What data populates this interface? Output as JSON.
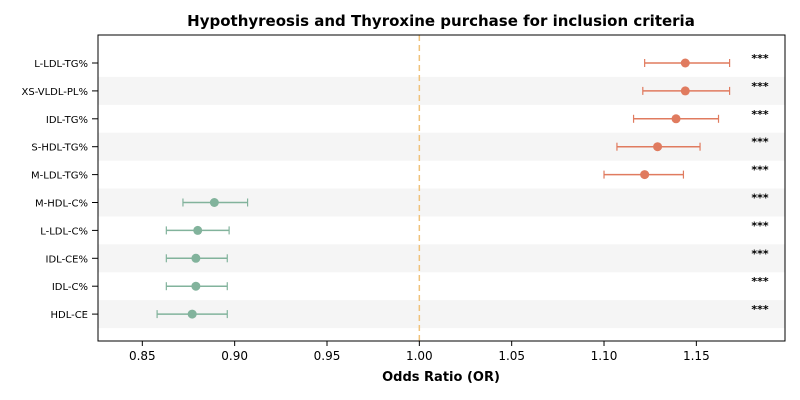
{
  "chart_data": {
    "type": "forest",
    "title": "Hypothyreosis and Thyroxine purchase for inclusion criteria",
    "xlabel": "Odds Ratio (OR)",
    "ylabel": "",
    "xlim": [
      0.826,
      1.198
    ],
    "xticks": [
      "0.85",
      "0.90",
      "0.95",
      "1.00",
      "1.05",
      "1.10",
      "1.15"
    ],
    "reference_line": 1.0,
    "reference_color": "#f0c27b",
    "colors": {
      "risk": "#e07b5f",
      "protective": "#82b39c",
      "band": "#f5f5f5"
    },
    "grid": false,
    "items": [
      {
        "label": "L-LDL-TG%",
        "or": 1.144,
        "lo": 1.122,
        "hi": 1.168,
        "sig": "***",
        "group": "risk"
      },
      {
        "label": "XS-VLDL-PL%",
        "or": 1.144,
        "lo": 1.121,
        "hi": 1.168,
        "sig": "***",
        "group": "risk"
      },
      {
        "label": "IDL-TG%",
        "or": 1.139,
        "lo": 1.116,
        "hi": 1.162,
        "sig": "***",
        "group": "risk"
      },
      {
        "label": "S-HDL-TG%",
        "or": 1.129,
        "lo": 1.107,
        "hi": 1.152,
        "sig": "***",
        "group": "risk"
      },
      {
        "label": "M-LDL-TG%",
        "or": 1.122,
        "lo": 1.1,
        "hi": 1.143,
        "sig": "***",
        "group": "risk"
      },
      {
        "label": "M-HDL-C%",
        "or": 0.889,
        "lo": 0.872,
        "hi": 0.907,
        "sig": "***",
        "group": "protective"
      },
      {
        "label": "L-LDL-C%",
        "or": 0.88,
        "lo": 0.863,
        "hi": 0.897,
        "sig": "***",
        "group": "protective"
      },
      {
        "label": "IDL-CE%",
        "or": 0.879,
        "lo": 0.863,
        "hi": 0.896,
        "sig": "***",
        "group": "protective"
      },
      {
        "label": "IDL-C%",
        "or": 0.879,
        "lo": 0.863,
        "hi": 0.896,
        "sig": "***",
        "group": "protective"
      },
      {
        "label": "HDL-CE",
        "or": 0.877,
        "lo": 0.858,
        "hi": 0.896,
        "sig": "***",
        "group": "protective"
      }
    ]
  }
}
